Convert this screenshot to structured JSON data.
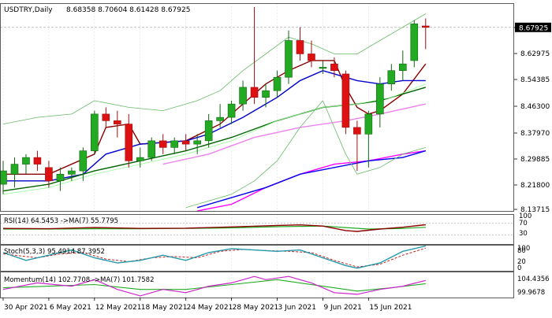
{
  "chart_data": {
    "type": "candlestick",
    "symbol_label": "USDTRY,Daily",
    "ohlc_label": "8.68358 8.70604 8.61428 8.67925",
    "current_price_label": "8.67925",
    "ylim": [
      8.13715,
      8.74
    ],
    "price_ticks": [
      "8.70555",
      "8.62975",
      "8.54385",
      "8.46300",
      "8.37970",
      "8.29885",
      "8.21800",
      "8.13715"
    ],
    "x_ticks": [
      {
        "i": 0,
        "label": "30 Apr 2021"
      },
      {
        "i": 4,
        "label": "6 May 2021"
      },
      {
        "i": 8,
        "label": "12 May 2021"
      },
      {
        "i": 12,
        "label": "18 May 2021"
      },
      {
        "i": 16,
        "label": "24 May 2021"
      },
      {
        "i": 20,
        "label": "28 May 2021"
      },
      {
        "i": 24,
        "label": "3 Jun 2021"
      },
      {
        "i": 28,
        "label": "9 Jun 2021"
      },
      {
        "i": 32,
        "label": "15 Jun 2021"
      }
    ],
    "candles": [
      {
        "o": 8.21,
        "h": 8.28,
        "l": 8.18,
        "c": 8.25
      },
      {
        "o": 8.24,
        "h": 8.29,
        "l": 8.2,
        "c": 8.27
      },
      {
        "o": 8.27,
        "h": 8.3,
        "l": 8.24,
        "c": 8.29
      },
      {
        "o": 8.29,
        "h": 8.31,
        "l": 8.25,
        "c": 8.27
      },
      {
        "o": 8.26,
        "h": 8.28,
        "l": 8.2,
        "c": 8.22
      },
      {
        "o": 8.22,
        "h": 8.26,
        "l": 8.19,
        "c": 8.24
      },
      {
        "o": 8.24,
        "h": 8.26,
        "l": 8.22,
        "c": 8.25
      },
      {
        "o": 8.25,
        "h": 8.32,
        "l": 8.22,
        "c": 8.31
      },
      {
        "o": 8.31,
        "h": 8.43,
        "l": 8.3,
        "c": 8.42
      },
      {
        "o": 8.42,
        "h": 8.44,
        "l": 8.38,
        "c": 8.4
      },
      {
        "o": 8.4,
        "h": 8.43,
        "l": 8.35,
        "c": 8.39
      },
      {
        "o": 8.39,
        "h": 8.42,
        "l": 8.26,
        "c": 8.28
      },
      {
        "o": 8.28,
        "h": 8.32,
        "l": 8.26,
        "c": 8.29
      },
      {
        "o": 8.29,
        "h": 8.35,
        "l": 8.28,
        "c": 8.34
      },
      {
        "o": 8.34,
        "h": 8.36,
        "l": 8.3,
        "c": 8.32
      },
      {
        "o": 8.32,
        "h": 8.35,
        "l": 8.3,
        "c": 8.34
      },
      {
        "o": 8.34,
        "h": 8.36,
        "l": 8.31,
        "c": 8.33
      },
      {
        "o": 8.33,
        "h": 8.36,
        "l": 8.3,
        "c": 8.34
      },
      {
        "o": 8.34,
        "h": 8.42,
        "l": 8.32,
        "c": 8.4
      },
      {
        "o": 8.4,
        "h": 8.45,
        "l": 8.38,
        "c": 8.41
      },
      {
        "o": 8.41,
        "h": 8.46,
        "l": 8.39,
        "c": 8.45
      },
      {
        "o": 8.45,
        "h": 8.52,
        "l": 8.43,
        "c": 8.5
      },
      {
        "o": 8.5,
        "h": 8.74,
        "l": 8.45,
        "c": 8.47
      },
      {
        "o": 8.47,
        "h": 8.51,
        "l": 8.44,
        "c": 8.49
      },
      {
        "o": 8.49,
        "h": 8.55,
        "l": 8.47,
        "c": 8.53
      },
      {
        "o": 8.53,
        "h": 8.67,
        "l": 8.51,
        "c": 8.64
      },
      {
        "o": 8.64,
        "h": 8.68,
        "l": 8.58,
        "c": 8.6
      },
      {
        "o": 8.6,
        "h": 8.64,
        "l": 8.56,
        "c": 8.58
      },
      {
        "o": 8.56,
        "h": 8.58,
        "l": 8.54,
        "c": 8.56
      },
      {
        "o": 8.57,
        "h": 8.59,
        "l": 8.53,
        "c": 8.55
      },
      {
        "o": 8.54,
        "h": 8.55,
        "l": 8.36,
        "c": 8.38
      },
      {
        "o": 8.38,
        "h": 8.4,
        "l": 8.25,
        "c": 8.36
      },
      {
        "o": 8.36,
        "h": 8.43,
        "l": 8.26,
        "c": 8.42
      },
      {
        "o": 8.42,
        "h": 8.53,
        "l": 8.38,
        "c": 8.51
      },
      {
        "o": 8.51,
        "h": 8.57,
        "l": 8.49,
        "c": 8.55
      },
      {
        "o": 8.55,
        "h": 8.61,
        "l": 8.52,
        "c": 8.57
      },
      {
        "o": 8.58,
        "h": 8.7,
        "l": 8.56,
        "c": 8.69
      },
      {
        "o": 8.68358,
        "h": 8.70604,
        "l": 8.61428,
        "c": 8.67925
      }
    ],
    "overlays": [
      {
        "color": "#8b0000",
        "points": [
          [
            0,
            8.24
          ],
          [
            4,
            8.24
          ],
          [
            8,
            8.3
          ],
          [
            9,
            8.38
          ],
          [
            11,
            8.39
          ],
          [
            12,
            8.33
          ],
          [
            16,
            8.34
          ],
          [
            19,
            8.39
          ],
          [
            21,
            8.45
          ],
          [
            23,
            8.51
          ],
          [
            25,
            8.55
          ],
          [
            27,
            8.58
          ],
          [
            29,
            8.58
          ],
          [
            30,
            8.5
          ],
          [
            31,
            8.44
          ],
          [
            32,
            8.42
          ],
          [
            33,
            8.43
          ],
          [
            35,
            8.48
          ],
          [
            37,
            8.57
          ]
        ]
      },
      {
        "color": "#0000cc",
        "points": [
          [
            0,
            8.22
          ],
          [
            4,
            8.22
          ],
          [
            7,
            8.24
          ],
          [
            9,
            8.3
          ],
          [
            12,
            8.33
          ],
          [
            16,
            8.34
          ],
          [
            18,
            8.36
          ],
          [
            21,
            8.41
          ],
          [
            24,
            8.47
          ],
          [
            26,
            8.52
          ],
          [
            28,
            8.55
          ],
          [
            29,
            8.54
          ],
          [
            31,
            8.52
          ],
          [
            33,
            8.51
          ],
          [
            35,
            8.52
          ],
          [
            37,
            8.52
          ]
        ]
      },
      {
        "color": "#006400",
        "points": [
          [
            0,
            8.19
          ],
          [
            4,
            8.21
          ],
          [
            8,
            8.25
          ],
          [
            12,
            8.28
          ],
          [
            16,
            8.31
          ],
          [
            20,
            8.35
          ],
          [
            24,
            8.4
          ],
          [
            28,
            8.44
          ],
          [
            31,
            8.45
          ],
          [
            33,
            8.46
          ],
          [
            35,
            8.48
          ],
          [
            37,
            8.5
          ]
        ]
      },
      {
        "color": "#98fb98",
        "points": [
          [
            0,
            8.18
          ],
          [
            4,
            8.2
          ],
          [
            8,
            8.24
          ],
          [
            12,
            8.27
          ],
          [
            16,
            8.3
          ],
          [
            20,
            8.34
          ],
          [
            24,
            8.4
          ],
          [
            28,
            8.44
          ],
          [
            31,
            8.45
          ],
          [
            34,
            8.47
          ],
          [
            37,
            8.51
          ]
        ]
      },
      {
        "color": "#ee82ee",
        "points": [
          [
            14,
            8.27
          ],
          [
            18,
            8.3
          ],
          [
            22,
            8.35
          ],
          [
            26,
            8.38
          ],
          [
            30,
            8.4
          ],
          [
            33,
            8.42
          ],
          [
            37,
            8.45
          ]
        ]
      },
      {
        "color": "#ff00ff",
        "points": [
          [
            17,
            8.13
          ],
          [
            20,
            8.15
          ],
          [
            23,
            8.2
          ],
          [
            26,
            8.24
          ],
          [
            29,
            8.27
          ],
          [
            32,
            8.28
          ],
          [
            35,
            8.3
          ],
          [
            37,
            8.31
          ]
        ]
      },
      {
        "color": "#0000ee",
        "points": [
          [
            17,
            8.14
          ],
          [
            20,
            8.17
          ],
          [
            23,
            8.2
          ],
          [
            26,
            8.24
          ],
          [
            29,
            8.26
          ],
          [
            32,
            8.28
          ],
          [
            35,
            8.29
          ],
          [
            37,
            8.31
          ]
        ]
      },
      {
        "color": "#66bb66",
        "points": [
          [
            0,
            8.39
          ],
          [
            3,
            8.41
          ],
          [
            6,
            8.42
          ],
          [
            8,
            8.46
          ],
          [
            11,
            8.44
          ],
          [
            14,
            8.43
          ],
          [
            17,
            8.46
          ],
          [
            19,
            8.49
          ],
          [
            21,
            8.55
          ],
          [
            23,
            8.6
          ],
          [
            25,
            8.65
          ],
          [
            27,
            8.63
          ],
          [
            29,
            8.6
          ],
          [
            31,
            8.6
          ],
          [
            33,
            8.64
          ],
          [
            35,
            8.68
          ],
          [
            37,
            8.72
          ]
        ]
      },
      {
        "color": "#66bb66",
        "points": [
          [
            16,
            8.14
          ],
          [
            20,
            8.18
          ],
          [
            22,
            8.22
          ],
          [
            24,
            8.28
          ],
          [
            26,
            8.38
          ],
          [
            28,
            8.46
          ],
          [
            30,
            8.3
          ],
          [
            31,
            8.24
          ],
          [
            33,
            8.26
          ],
          [
            35,
            8.3
          ],
          [
            37,
            8.32
          ]
        ]
      }
    ],
    "rsi": {
      "label": "RSI(14) 64.5453 ->MA(7) 55.7795",
      "ticks": [
        "100",
        "70",
        "30"
      ],
      "levels": [
        70,
        30
      ],
      "rsi_line": [
        [
          0,
          52
        ],
        [
          4,
          51
        ],
        [
          8,
          55
        ],
        [
          12,
          52
        ],
        [
          16,
          53
        ],
        [
          20,
          57
        ],
        [
          24,
          62
        ],
        [
          26,
          64
        ],
        [
          28,
          60
        ],
        [
          30,
          45
        ],
        [
          31,
          42
        ],
        [
          33,
          50
        ],
        [
          35,
          56
        ],
        [
          37,
          64.5453
        ]
      ],
      "ma_line": [
        [
          0,
          50
        ],
        [
          4,
          50
        ],
        [
          8,
          51
        ],
        [
          12,
          51
        ],
        [
          16,
          52
        ],
        [
          20,
          54
        ],
        [
          24,
          58
        ],
        [
          28,
          60
        ],
        [
          30,
          55
        ],
        [
          32,
          50
        ],
        [
          35,
          52
        ],
        [
          37,
          55.7795
        ]
      ]
    },
    "stoch": {
      "label": "Stoch(5,3,3) 95.4914 87.3952",
      "ticks": [
        "100",
        "80",
        "20",
        "0"
      ],
      "main_line": [
        [
          0,
          70
        ],
        [
          2,
          40
        ],
        [
          4,
          60
        ],
        [
          6,
          80
        ],
        [
          8,
          50
        ],
        [
          10,
          30
        ],
        [
          12,
          40
        ],
        [
          14,
          60
        ],
        [
          16,
          40
        ],
        [
          18,
          70
        ],
        [
          20,
          85
        ],
        [
          22,
          80
        ],
        [
          24,
          75
        ],
        [
          26,
          80
        ],
        [
          28,
          50
        ],
        [
          30,
          20
        ],
        [
          31,
          10
        ],
        [
          33,
          30
        ],
        [
          35,
          75
        ],
        [
          37,
          95.4914
        ]
      ],
      "signal_line": [
        [
          0,
          65
        ],
        [
          3,
          50
        ],
        [
          5,
          65
        ],
        [
          7,
          70
        ],
        [
          9,
          45
        ],
        [
          11,
          35
        ],
        [
          13,
          50
        ],
        [
          15,
          55
        ],
        [
          17,
          50
        ],
        [
          19,
          75
        ],
        [
          21,
          82
        ],
        [
          23,
          78
        ],
        [
          25,
          75
        ],
        [
          27,
          70
        ],
        [
          29,
          40
        ],
        [
          31,
          15
        ],
        [
          33,
          25
        ],
        [
          35,
          60
        ],
        [
          37,
          87.3952
        ]
      ]
    },
    "momentum": {
      "label": "Momentum(14) 102.7708 ->MA(7) 101.7582",
      "ticks": [
        "104.4356",
        "99.9678"
      ],
      "main_line": [
        [
          0,
          100
        ],
        [
          3,
          102
        ],
        [
          6,
          101
        ],
        [
          8,
          103
        ],
        [
          10,
          100
        ],
        [
          12,
          98
        ],
        [
          14,
          100
        ],
        [
          16,
          99
        ],
        [
          18,
          101
        ],
        [
          20,
          102
        ],
        [
          22,
          104
        ],
        [
          23,
          103
        ],
        [
          25,
          104
        ],
        [
          27,
          102
        ],
        [
          29,
          99
        ],
        [
          31,
          98.5
        ],
        [
          33,
          100
        ],
        [
          35,
          101
        ],
        [
          37,
          102.7708
        ]
      ],
      "ma_line": [
        [
          0,
          100.5
        ],
        [
          4,
          101
        ],
        [
          8,
          101.5
        ],
        [
          12,
          100
        ],
        [
          16,
          100
        ],
        [
          20,
          101.5
        ],
        [
          24,
          103
        ],
        [
          28,
          101
        ],
        [
          31,
          99.5
        ],
        [
          34,
          100.5
        ],
        [
          37,
          101.7582
        ]
      ]
    }
  }
}
